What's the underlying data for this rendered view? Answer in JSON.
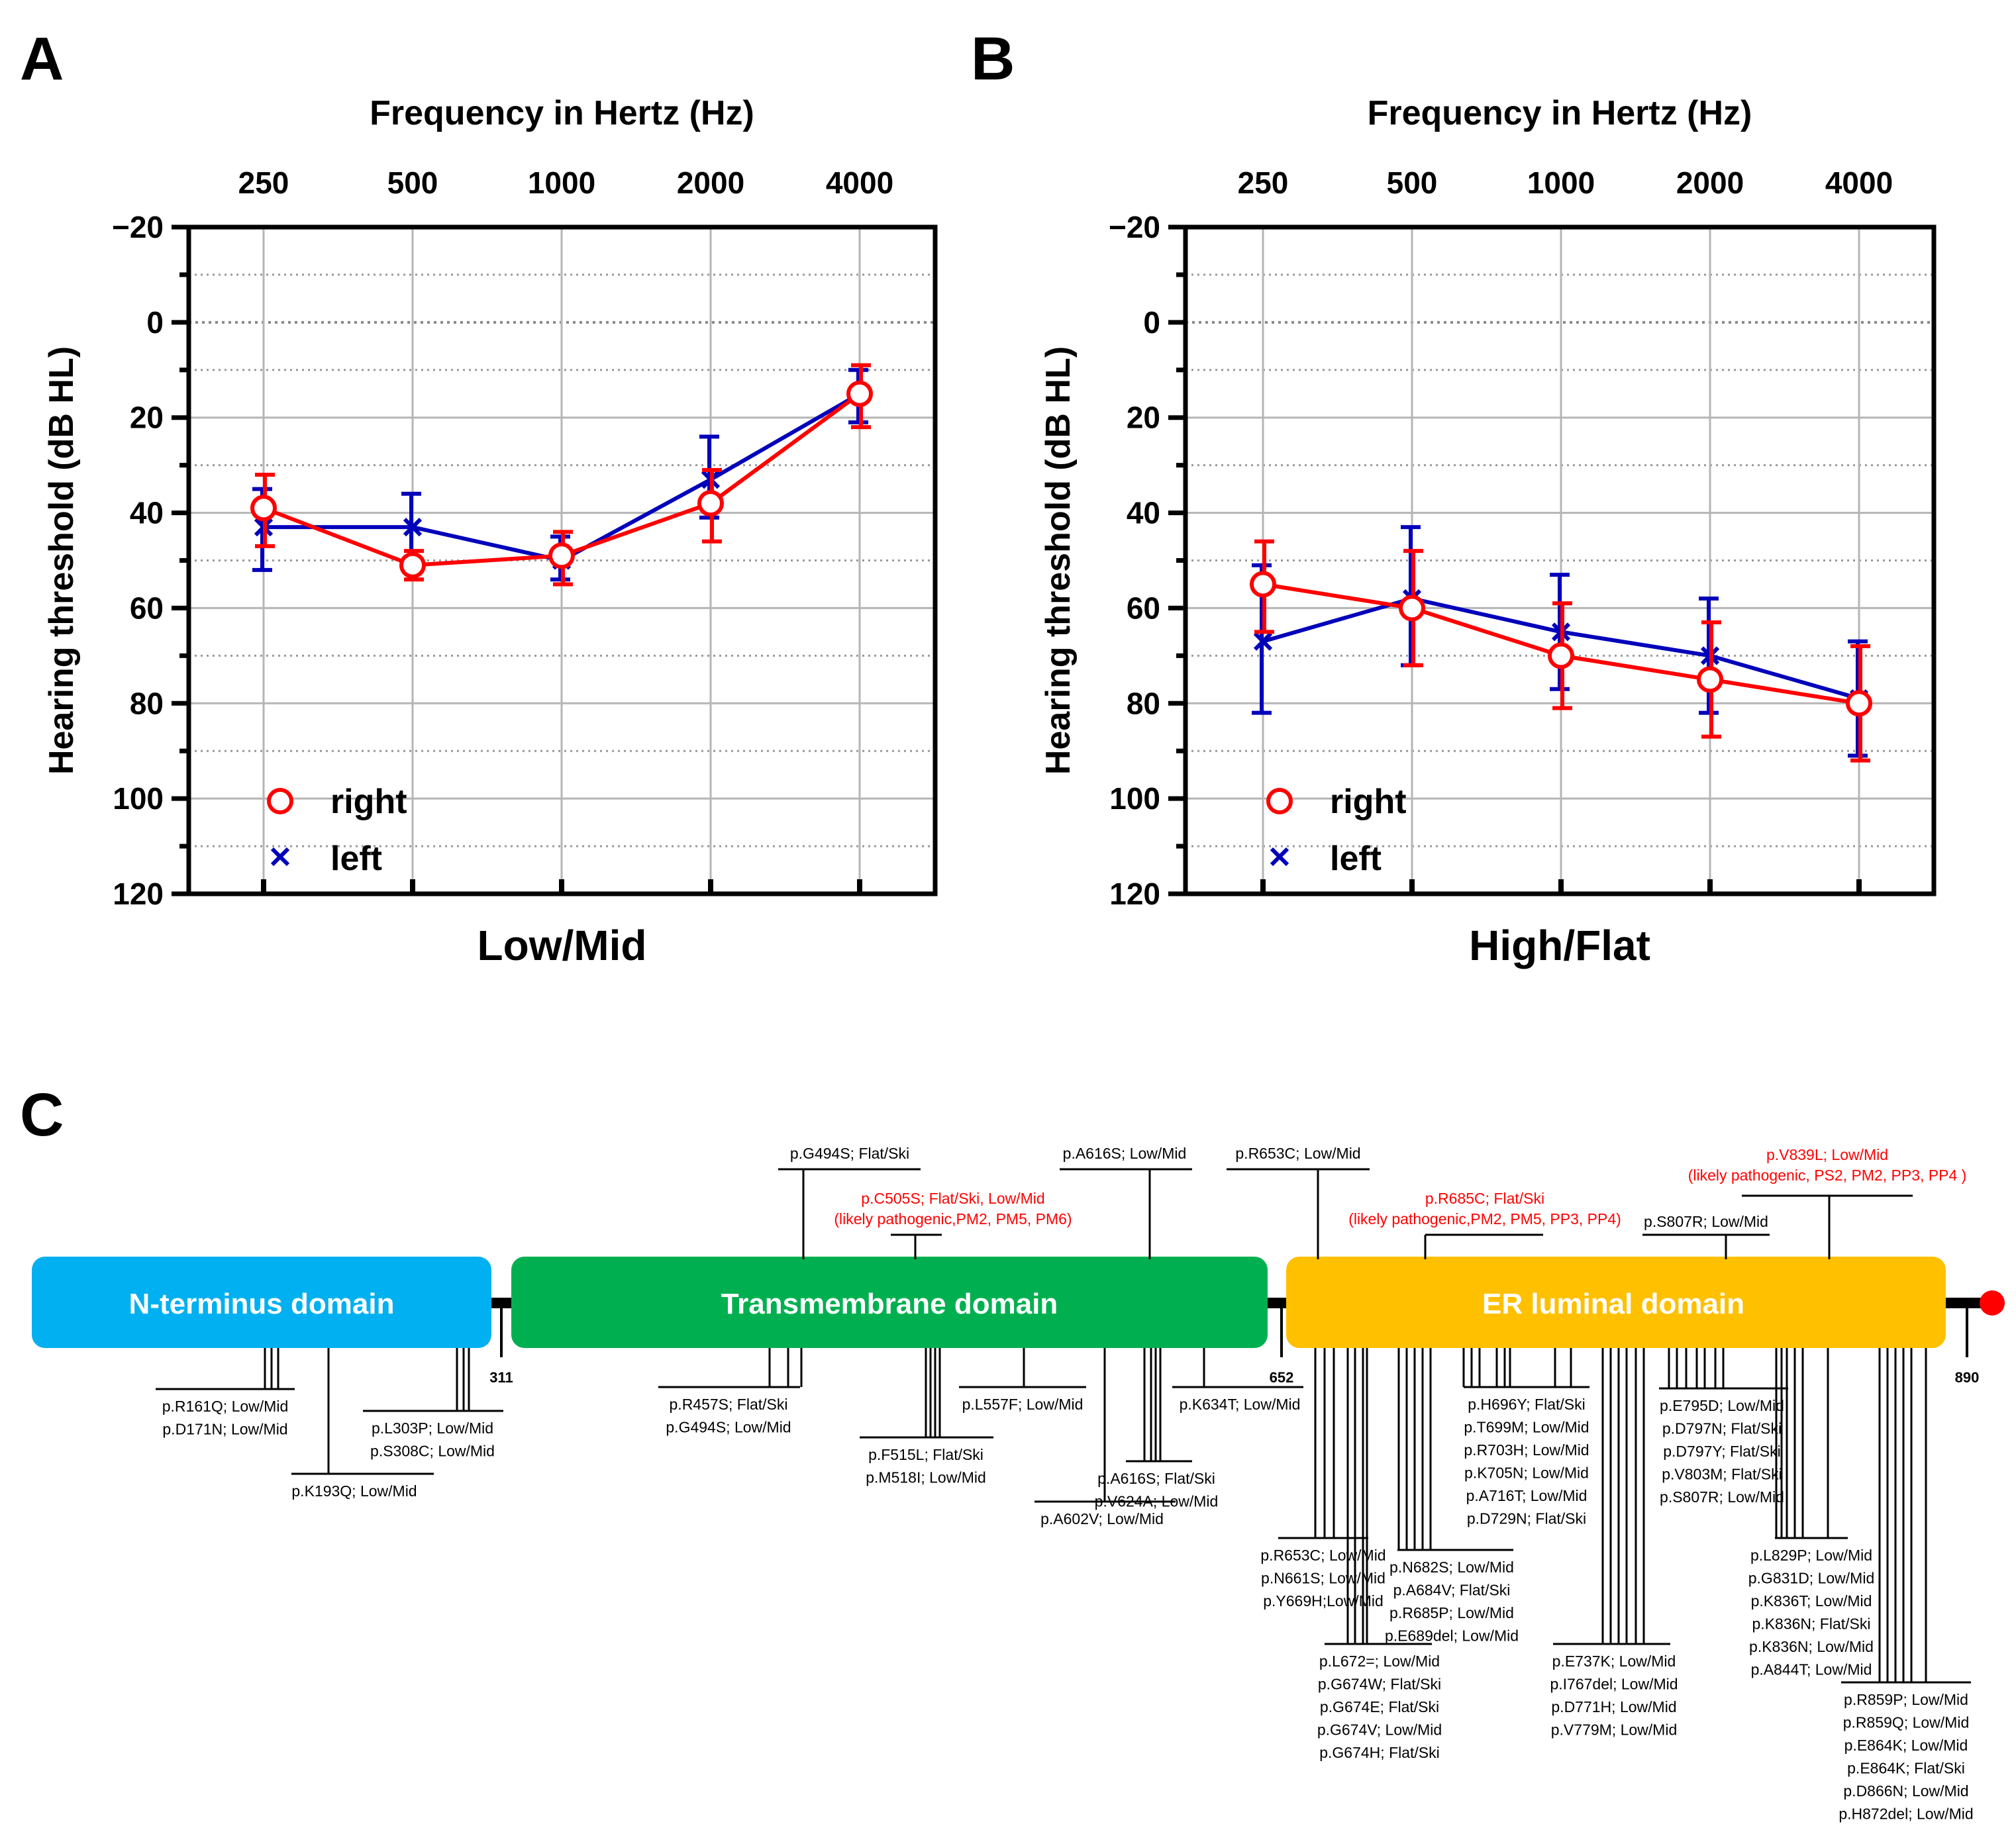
{
  "colors": {
    "right": "#ff0000",
    "left": "#0000bb",
    "nterm": "#00b0f0",
    "tm": "#00b050",
    "er": "#ffc000",
    "end_dot": "#ff0000"
  },
  "panels": [
    {
      "letter": "A",
      "caption": "Low/Mid"
    },
    {
      "letter": "B",
      "caption": "High/Flat"
    },
    {
      "letter": "C"
    }
  ],
  "chart_data": [
    {
      "type": "line",
      "title": "Frequency in Hertz (Hz)",
      "xlabel": "Frequency in Hertz (Hz)",
      "ylabel": "Hearing threshold (dB  HL)",
      "caption": "Low/Mid",
      "categories": [
        "250",
        "500",
        "1000",
        "2000",
        "4000"
      ],
      "ylim": [
        -20,
        120
      ],
      "y_inverted": true,
      "yticks": [
        "−20",
        "0",
        "20",
        "40",
        "60",
        "80",
        "100",
        "120"
      ],
      "legend": [
        "right",
        "left"
      ],
      "series": [
        {
          "name": "right",
          "marker": "circle",
          "values": [
            39,
            51,
            49,
            38,
            15
          ],
          "err_low": [
            32,
            48,
            44,
            31,
            9
          ],
          "err_high": [
            47,
            54,
            55,
            46,
            22
          ]
        },
        {
          "name": "left",
          "marker": "x",
          "values": [
            43,
            43,
            50,
            33,
            15
          ],
          "err_low": [
            35,
            36,
            45,
            24,
            10
          ],
          "err_high": [
            52,
            51,
            54,
            41,
            21
          ]
        }
      ]
    },
    {
      "type": "line",
      "title": "Frequency in Hertz (Hz)",
      "xlabel": "Frequency in Hertz (Hz)",
      "ylabel": "Hearing threshold (dB  HL)",
      "caption": "High/Flat",
      "categories": [
        "250",
        "500",
        "1000",
        "2000",
        "4000"
      ],
      "ylim": [
        -20,
        120
      ],
      "y_inverted": true,
      "yticks": [
        "−20",
        "0",
        "20",
        "40",
        "60",
        "80",
        "100",
        "120"
      ],
      "legend": [
        "right",
        "left"
      ],
      "series": [
        {
          "name": "right",
          "marker": "circle",
          "values": [
            55,
            60,
            70,
            75,
            80
          ],
          "err_low": [
            46,
            48,
            59,
            63,
            68
          ],
          "err_high": [
            65,
            72,
            81,
            87,
            92
          ]
        },
        {
          "name": "left",
          "marker": "x",
          "values": [
            67,
            58,
            65,
            70,
            79
          ],
          "err_low": [
            51,
            43,
            53,
            58,
            67
          ],
          "err_high": [
            82,
            72,
            77,
            82,
            91
          ]
        }
      ]
    }
  ],
  "protein_map": {
    "length": 890,
    "domains": [
      {
        "name": "N-terminus domain",
        "start": 1,
        "end": 311
      },
      {
        "name": "Transmembrane domain",
        "start": 312,
        "end": 652
      },
      {
        "name": "ER luminal domain",
        "start": 653,
        "end": 890
      }
    ],
    "position_labels": [
      "311",
      "652",
      "890"
    ],
    "variants_above": [
      {
        "text": "p.G494S; Flat/Ski",
        "pathogenic": false
      },
      {
        "text": "p.C505S; Flat/Ski, Low/Mid",
        "sub": "(likely pathogenic,PM2, PM5, PM6)",
        "pathogenic": true
      },
      {
        "text": "p.A616S; Low/Mid",
        "pathogenic": false
      },
      {
        "text": "p.R653C; Low/Mid",
        "pathogenic": false
      },
      {
        "text": "p.R685C; Flat/Ski",
        "sub": "(likely pathogenic,PM2, PM5, PP3, PP4)",
        "pathogenic": true
      },
      {
        "text": "p.S807R; Low/Mid",
        "pathogenic": false
      },
      {
        "text": "p.V839L; Low/Mid",
        "sub": "(likely pathogenic, PS2, PM2, PP3, PP4 )",
        "pathogenic": true
      }
    ],
    "variant_groups_below": [
      {
        "lines": [
          "p.R161Q; Low/Mid",
          "p.D171N; Low/Mid"
        ]
      },
      {
        "lines": [
          "p.K193Q; Low/Mid"
        ]
      },
      {
        "lines": [
          "p.L303P; Low/Mid",
          "p.S308C; Low/Mid"
        ]
      },
      {
        "lines": [
          "p.R457S; Flat/Ski",
          "p.G494S; Low/Mid"
        ]
      },
      {
        "lines": [
          "p.F515L; Flat/Ski",
          "p.M518I; Low/Mid"
        ]
      },
      {
        "lines": [
          "p.L557F; Low/Mid"
        ]
      },
      {
        "lines": [
          "p.A602V; Low/Mid"
        ]
      },
      {
        "lines": [
          "p.A616S; Flat/Ski",
          "p.V624A; Low/Mid"
        ]
      },
      {
        "lines": [
          "p.K634T; Low/Mid"
        ]
      },
      {
        "lines": [
          "p.R653C; Low/Mid",
          "p.N661S; Low/Mid",
          "p.Y669H;Low/Mid"
        ]
      },
      {
        "lines": [
          "p.L672=; Low/Mid",
          "p.G674W; Flat/Ski",
          "p.G674E; Flat/Ski",
          "p.G674V; Low/Mid",
          "p.G674H; Flat/Ski"
        ]
      },
      {
        "lines": [
          "p.N682S; Low/Mid",
          "p.A684V; Flat/Ski",
          "p.R685P; Low/Mid",
          "p.E689del; Low/Mid"
        ]
      },
      {
        "lines": [
          "p.H696Y; Flat/Ski",
          "p.T699M; Low/Mid",
          "p.R703H; Low/Mid",
          "p.K705N; Low/Mid",
          "p.A716T; Low/Mid",
          "p.D729N; Flat/Ski"
        ]
      },
      {
        "lines": [
          "p.E737K; Low/Mid",
          "p.I767del; Low/Mid",
          "p.D771H; Low/Mid",
          "p.V779M; Low/Mid"
        ]
      },
      {
        "lines": [
          "p.E795D; Low/Mid",
          "p.D797N; Flat/Ski",
          "p.D797Y; Flat/Ski",
          "p.V803M; Flat/Ski",
          "p.S807R; Low/Mid"
        ]
      },
      {
        "lines": [
          "p.L829P; Low/Mid",
          "p.G831D; Low/Mid",
          "p.K836T; Low/Mid",
          "p.K836N; Flat/Ski",
          "p.K836N; Low/Mid",
          "p.A844T; Low/Mid"
        ]
      },
      {
        "lines": [
          "p.R859P; Low/Mid",
          "p.R859Q; Low/Mid",
          "p.E864K; Low/Mid",
          "p.E864K; Flat/Ski",
          "p.D866N; Low/Mid",
          "p.H872del; Low/Mid"
        ]
      }
    ]
  }
}
